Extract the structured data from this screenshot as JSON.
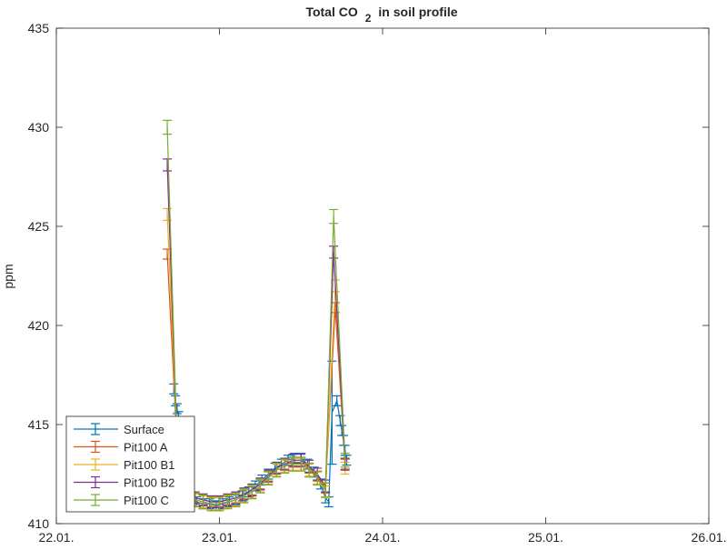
{
  "chart_data": {
    "type": "line",
    "title": "Total CO",
    "title_subscript": "2",
    "title_suffix": "in soil profile",
    "xlabel": "",
    "ylabel": "ppm",
    "xlim": [
      22,
      26
    ],
    "ylim": [
      410,
      435
    ],
    "x_ticks": [
      22,
      23,
      24,
      25,
      26
    ],
    "x_tick_labels": [
      "22.01.",
      "23.01.",
      "24.01.",
      "25.01.",
      "26.01."
    ],
    "y_ticks": [
      410,
      415,
      420,
      425,
      430,
      435
    ],
    "y_tick_labels": [
      "410",
      "415",
      "420",
      "425",
      "430",
      "435"
    ],
    "grid": false,
    "legend_position": "bottom-left",
    "series": [
      {
        "name": "Surface",
        "color": "#0072BD",
        "error": 0.25,
        "x": [
          22.72,
          22.73,
          22.74,
          22.75,
          22.76,
          22.78,
          22.82,
          22.86,
          22.9,
          22.94,
          22.98,
          23.02,
          23.06,
          23.1,
          23.14,
          23.18,
          23.22,
          23.26,
          23.3,
          23.34,
          23.38,
          23.42,
          23.46,
          23.5,
          23.54,
          23.58,
          23.62,
          23.65,
          23.67,
          23.69,
          23.72,
          23.74,
          23.75,
          23.76,
          23.77,
          23.78
        ],
        "values": [
          416.8,
          416.2,
          415.8,
          415.4,
          414.8,
          412.0,
          411.2,
          411.1,
          411.0,
          411.0,
          410.9,
          411.0,
          411.1,
          411.2,
          411.4,
          411.6,
          411.9,
          412.2,
          412.5,
          412.8,
          413.0,
          413.2,
          413.3,
          413.3,
          413.0,
          412.6,
          412.0,
          411.3,
          411.1,
          415.6,
          416.2,
          415.2,
          414.7,
          414.2,
          413.7,
          413.2
        ]
      },
      {
        "name": "Pit100 A",
        "color": "#D95319",
        "error": 0.25,
        "x": [
          22.68,
          22.74,
          22.8,
          22.85,
          22.9,
          22.95,
          23.0,
          23.05,
          23.1,
          23.15,
          23.2,
          23.25,
          23.3,
          23.35,
          23.4,
          23.45,
          23.5,
          23.55,
          23.6,
          23.65,
          23.71,
          23.77
        ],
        "values": [
          423.6,
          414.0,
          411.4,
          411.3,
          411.2,
          411.1,
          411.1,
          411.2,
          411.3,
          411.5,
          411.7,
          412.0,
          412.4,
          412.8,
          413.0,
          413.1,
          413.1,
          412.8,
          412.4,
          411.8,
          420.9,
          413.0
        ]
      },
      {
        "name": "Pit100 B1",
        "color": "#EDB120",
        "error": 0.3,
        "x": [
          22.68,
          22.74,
          22.8,
          22.85,
          22.9,
          22.95,
          23.0,
          23.05,
          23.1,
          23.15,
          23.2,
          23.25,
          23.3,
          23.35,
          23.4,
          23.45,
          23.5,
          23.55,
          23.6,
          23.65,
          23.71,
          23.77
        ],
        "values": [
          425.6,
          414.0,
          411.3,
          411.2,
          411.1,
          411.0,
          411.0,
          411.1,
          411.2,
          411.4,
          411.6,
          411.9,
          412.3,
          412.7,
          412.9,
          413.0,
          413.0,
          412.7,
          412.3,
          411.6,
          422.0,
          412.8
        ]
      },
      {
        "name": "Pit100 B2",
        "color": "#7E2F8E",
        "error": 0.3,
        "x": [
          22.68,
          22.74,
          22.8,
          22.85,
          22.9,
          22.95,
          23.0,
          23.05,
          23.1,
          23.15,
          23.2,
          23.25,
          23.3,
          23.35,
          23.4,
          23.45,
          23.5,
          23.55,
          23.6,
          23.65,
          23.7,
          23.77
        ],
        "values": [
          428.1,
          414.0,
          411.4,
          411.3,
          411.2,
          411.1,
          411.1,
          411.2,
          411.3,
          411.5,
          411.7,
          412.0,
          412.4,
          412.8,
          413.0,
          413.2,
          413.2,
          412.9,
          412.5,
          411.9,
          423.7,
          413.0
        ]
      },
      {
        "name": "Pit100 C",
        "color": "#77AC30",
        "error": 0.35,
        "x": [
          22.68,
          22.74,
          22.8,
          22.85,
          22.9,
          22.95,
          23.0,
          23.05,
          23.1,
          23.15,
          23.2,
          23.25,
          23.3,
          23.35,
          23.4,
          23.45,
          23.5,
          23.55,
          23.6,
          23.65,
          23.7,
          23.77
        ],
        "values": [
          430.0,
          414.0,
          411.3,
          411.2,
          411.1,
          411.0,
          411.0,
          411.1,
          411.2,
          411.4,
          411.6,
          411.9,
          412.3,
          412.7,
          412.9,
          413.0,
          413.0,
          412.7,
          412.3,
          411.7,
          425.5,
          413.2
        ]
      }
    ]
  }
}
